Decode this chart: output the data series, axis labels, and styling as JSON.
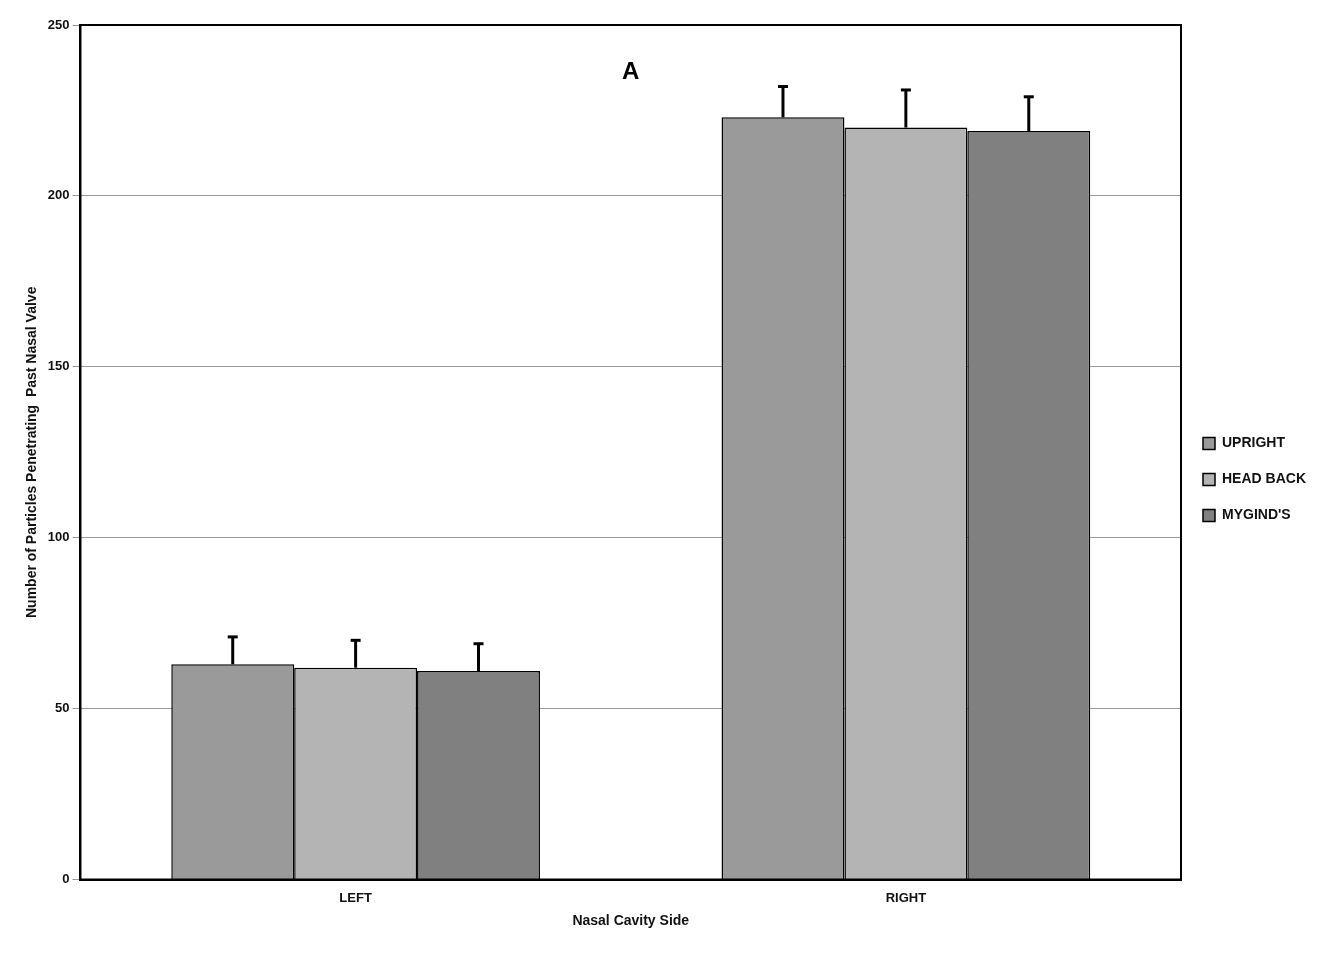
{
  "chart_data": {
    "type": "bar",
    "title": "A",
    "xlabel": "Nasal Cavity Side",
    "ylabel": "Number of Particles Penetrating  Past Nasal Valve",
    "categories": [
      "LEFT",
      "RIGHT"
    ],
    "series": [
      {
        "name": "UPRIGHT",
        "color": "#9a9a9a",
        "values": [
          63,
          223
        ],
        "errors": [
          [
            63,
            71
          ],
          [
            223,
            232
          ]
        ]
      },
      {
        "name": "HEAD BACK",
        "color": "#b4b4b4",
        "values": [
          62,
          220
        ],
        "errors": [
          [
            62,
            70
          ],
          [
            220,
            231
          ]
        ]
      },
      {
        "name": "MYGIND'S",
        "color": "#808080",
        "values": [
          61,
          219
        ],
        "errors": [
          [
            61,
            69
          ],
          [
            219,
            229
          ]
        ]
      }
    ],
    "ylim": [
      0,
      250
    ],
    "yticks": [
      0,
      50,
      100,
      150,
      200,
      250
    ],
    "grid": "y",
    "legend": "right"
  }
}
